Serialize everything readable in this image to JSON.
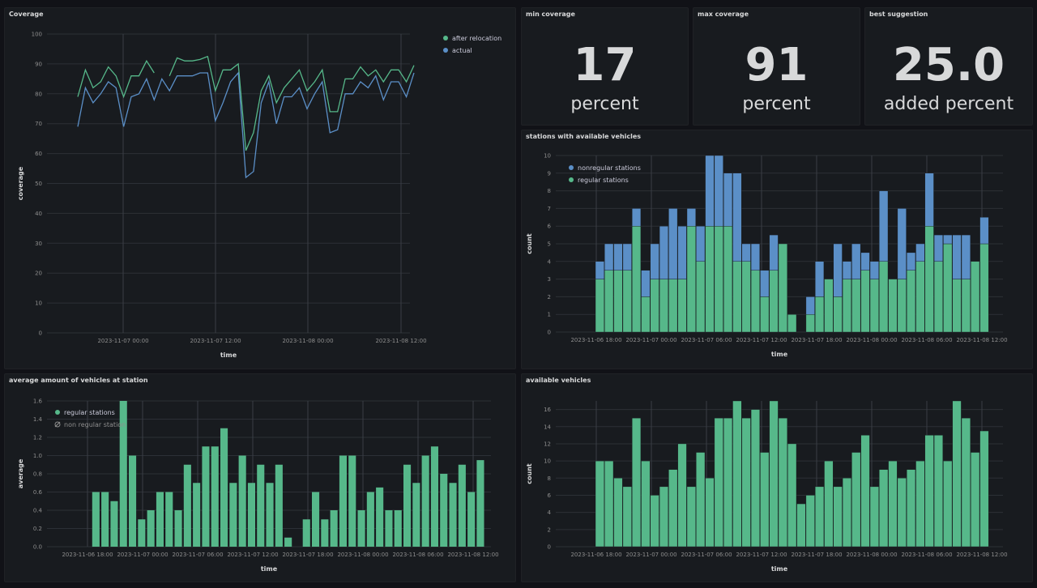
{
  "colors": {
    "green": "#56b88a",
    "blue": "#5b8fc7",
    "grid": "#2c3036",
    "axis": "#8e8e8e",
    "background": "#111217",
    "panel": "#181b1f"
  },
  "panels": {
    "coverage": {
      "title": "Coverage"
    },
    "min_coverage": {
      "title": "min coverage",
      "value": "17",
      "unit": "percent"
    },
    "max_coverage": {
      "title": "max coverage",
      "value": "91",
      "unit": "percent"
    },
    "best_suggestion": {
      "title": "best suggestion",
      "value": "25.0",
      "unit": "added percent"
    },
    "stations": {
      "title": "stations with available vehicles"
    },
    "average": {
      "title": "average amount of vehicles at station"
    },
    "available": {
      "title": "available vehicles"
    }
  },
  "chart_data": [
    {
      "id": "coverage",
      "type": "line",
      "xlabel": "time",
      "ylabel": "coverage",
      "ylim": [
        0,
        100
      ],
      "yticks": [
        0,
        10,
        20,
        30,
        40,
        50,
        60,
        70,
        80,
        90,
        100
      ],
      "xticks": [
        "2023-11-07 00:00",
        "2023-11-07 12:00",
        "2023-11-08 00:00",
        "2023-11-08 12:00"
      ],
      "legend": "top-right",
      "series": [
        {
          "name": "after relocation",
          "color": "#56b88a",
          "values": [
            79,
            88,
            82,
            84,
            89,
            86,
            79,
            86,
            86,
            91,
            87,
            null,
            86,
            92,
            91,
            91,
            91.5,
            92.5,
            81,
            88,
            88,
            90,
            61,
            67,
            81,
            86,
            77,
            82,
            85,
            88,
            81,
            84,
            88,
            74,
            74,
            85,
            85,
            89,
            86,
            88,
            84,
            88,
            88,
            84,
            89.5
          ]
        },
        {
          "name": "actual",
          "color": "#5b8fc7",
          "values": [
            69,
            82,
            77,
            80,
            84,
            82,
            69,
            79,
            80,
            85,
            78,
            85,
            81,
            86,
            86,
            86,
            87,
            87,
            71,
            77,
            84,
            87,
            52,
            54,
            77,
            84,
            70,
            79,
            79,
            82,
            75,
            80,
            84,
            67,
            68,
            80,
            80,
            84,
            82,
            86,
            78,
            84,
            84,
            79,
            87
          ]
        }
      ]
    },
    {
      "id": "stations",
      "type": "bar",
      "stacked": true,
      "xlabel": "time",
      "ylabel": "count",
      "ylim": [
        0,
        10
      ],
      "yticks": [
        0,
        1,
        2,
        3,
        4,
        5,
        6,
        7,
        8,
        9,
        10
      ],
      "xticks": [
        "2023-11-06 18:00",
        "2023-11-07 00:00",
        "2023-11-07 06:00",
        "2023-11-07 12:00",
        "2023-11-07 18:00",
        "2023-11-08 00:00",
        "2023-11-08 06:00",
        "2023-11-08 12:00"
      ],
      "legend": "top-left",
      "series": [
        {
          "name": "regular stations",
          "color": "#56b88a",
          "values": [
            3,
            3.5,
            3.5,
            3.5,
            6,
            2,
            3,
            3,
            3,
            3,
            6,
            4,
            6,
            6,
            6,
            4,
            4,
            3.5,
            2,
            3.5,
            5,
            1,
            null,
            1,
            2,
            3,
            2,
            3,
            3,
            3.5,
            3,
            4,
            3,
            3,
            3.5,
            4,
            6,
            4,
            5,
            3,
            3,
            4,
            5
          ]
        },
        {
          "name": "nonregular stations",
          "color": "#5b8fc7",
          "values": [
            1,
            1.5,
            1.5,
            1.5,
            1,
            1.5,
            2,
            3,
            4,
            3,
            1,
            2,
            4,
            4,
            3,
            5,
            1,
            1.5,
            1.5,
            2,
            0,
            0,
            null,
            1,
            2,
            0,
            3,
            1,
            2,
            1,
            1,
            4,
            0,
            4,
            1,
            1,
            3,
            1.5,
            0.5,
            2.5,
            2.5,
            0,
            1.5
          ]
        }
      ]
    },
    {
      "id": "average",
      "type": "bar",
      "xlabel": "time",
      "ylabel": "average",
      "ylim": [
        0,
        1.6
      ],
      "yticks": [
        0,
        0.2,
        0.4,
        0.6,
        0.8,
        1.0,
        1.2,
        1.4,
        1.6
      ],
      "xticks": [
        "2023-11-06 18:00",
        "2023-11-07 00:00",
        "2023-11-07 06:00",
        "2023-11-07 12:00",
        "2023-11-07 18:00",
        "2023-11-08 00:00",
        "2023-11-08 06:00",
        "2023-11-08 12:00"
      ],
      "legend": "top-left",
      "series": [
        {
          "name": "regular stations",
          "color": "#56b88a",
          "values": [
            0.6,
            0.6,
            0.5,
            1.6,
            1.0,
            0.3,
            0.4,
            0.6,
            0.6,
            0.4,
            0.9,
            0.7,
            1.1,
            1.1,
            1.3,
            0.7,
            1.0,
            0.7,
            0.9,
            0.7,
            0.9,
            0.1,
            null,
            0.3,
            0.6,
            0.3,
            0.4,
            1.0,
            1.0,
            0.4,
            0.6,
            0.65,
            0.4,
            0.4,
            0.9,
            0.7,
            1.0,
            1.1,
            0.8,
            0.7,
            0.9,
            0.6,
            0.95
          ]
        },
        {
          "name": "non regular station",
          "color": "#8e8e8e",
          "hidden": true,
          "values": []
        }
      ]
    },
    {
      "id": "available",
      "type": "bar",
      "xlabel": "time",
      "ylabel": "count",
      "ylim": [
        0,
        17
      ],
      "yticks": [
        0,
        2,
        4,
        6,
        8,
        10,
        12,
        14,
        16
      ],
      "xticks": [
        "2023-11-06 18:00",
        "2023-11-07 00:00",
        "2023-11-07 06:00",
        "2023-11-07 12:00",
        "2023-11-07 18:00",
        "2023-11-08 00:00",
        "2023-11-08 06:00",
        "2023-11-08 12:00"
      ],
      "series": [
        {
          "name": "available vehicles",
          "color": "#56b88a",
          "values": [
            10,
            10,
            8,
            7,
            15,
            10,
            6,
            7,
            9,
            12,
            7,
            11,
            8,
            15,
            15,
            17,
            15,
            16,
            11,
            17,
            15,
            12,
            5,
            6,
            7,
            10,
            7,
            8,
            11,
            13,
            7,
            9,
            10,
            8,
            9,
            10,
            13,
            13,
            10,
            17,
            15,
            11,
            13.5
          ]
        }
      ]
    }
  ]
}
